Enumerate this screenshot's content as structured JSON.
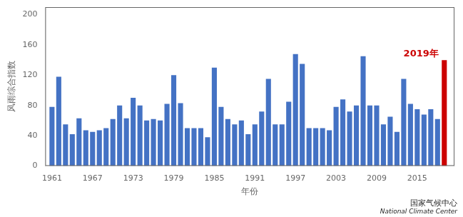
{
  "chart_data": {
    "type": "bar",
    "xlabel": "年份",
    "ylabel": "风雨综合指数",
    "x": [
      1961,
      1962,
      1963,
      1964,
      1965,
      1966,
      1967,
      1968,
      1969,
      1970,
      1971,
      1972,
      1973,
      1974,
      1975,
      1976,
      1977,
      1978,
      1979,
      1980,
      1981,
      1982,
      1983,
      1984,
      1985,
      1986,
      1987,
      1988,
      1989,
      1990,
      1991,
      1992,
      1993,
      1994,
      1995,
      1996,
      1997,
      1998,
      1999,
      2000,
      2001,
      2002,
      2003,
      2004,
      2005,
      2006,
      2007,
      2008,
      2009,
      2010,
      2011,
      2012,
      2013,
      2014,
      2015,
      2016,
      2017,
      2018,
      2019
    ],
    "values": [
      78,
      118,
      55,
      42,
      63,
      47,
      45,
      47,
      50,
      62,
      80,
      63,
      90,
      80,
      60,
      62,
      60,
      82,
      120,
      83,
      50,
      50,
      50,
      38,
      130,
      78,
      62,
      55,
      60,
      42,
      55,
      72,
      115,
      55,
      55,
      85,
      148,
      135,
      50,
      50,
      50,
      47,
      78,
      88,
      72,
      80,
      145,
      80,
      80,
      55,
      65,
      45,
      115,
      82,
      75,
      68,
      75,
      62,
      140
    ],
    "colors": [
      "#4472c4",
      "#4472c4",
      "#4472c4",
      "#4472c4",
      "#4472c4",
      "#4472c4",
      "#4472c4",
      "#4472c4",
      "#4472c4",
      "#4472c4",
      "#4472c4",
      "#4472c4",
      "#4472c4",
      "#4472c4",
      "#4472c4",
      "#4472c4",
      "#4472c4",
      "#4472c4",
      "#4472c4",
      "#4472c4",
      "#4472c4",
      "#4472c4",
      "#4472c4",
      "#4472c4",
      "#4472c4",
      "#4472c4",
      "#4472c4",
      "#4472c4",
      "#4472c4",
      "#4472c4",
      "#4472c4",
      "#4472c4",
      "#4472c4",
      "#4472c4",
      "#4472c4",
      "#4472c4",
      "#4472c4",
      "#4472c4",
      "#4472c4",
      "#4472c4",
      "#4472c4",
      "#4472c4",
      "#4472c4",
      "#4472c4",
      "#4472c4",
      "#4472c4",
      "#4472c4",
      "#4472c4",
      "#4472c4",
      "#4472c4",
      "#4472c4",
      "#4472c4",
      "#4472c4",
      "#4472c4",
      "#4472c4",
      "#4472c4",
      "#4472c4",
      "#4472c4",
      "#cc0000"
    ],
    "xlim": [
      1960.0,
      2020.5
    ],
    "xticks": [
      1961,
      1967,
      1973,
      1979,
      1985,
      1991,
      1997,
      2003,
      2009,
      2015
    ],
    "ylim": [
      0,
      210
    ],
    "yticks": [
      0,
      40,
      80,
      120,
      160,
      200
    ],
    "grid": false,
    "annotations": [
      {
        "text": "2019年",
        "x": 2019,
        "y": 140,
        "color": "#cc0000"
      },
      {
        "text": "国家气候中心"
      },
      {
        "text": "National Climate Center"
      }
    ]
  }
}
